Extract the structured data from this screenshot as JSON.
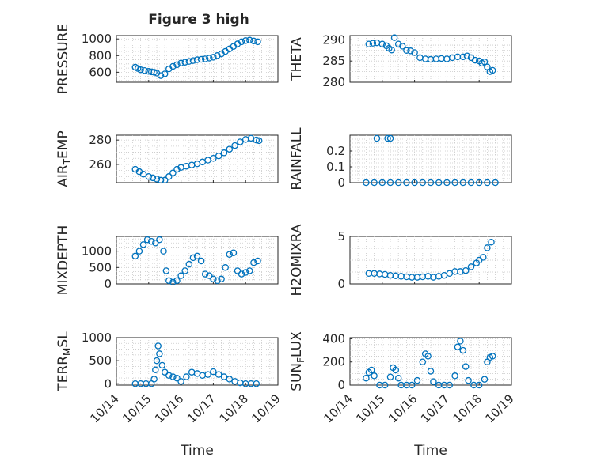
{
  "figure": {
    "title": "Figure 3 high",
    "accent_color": "#0072BD",
    "marker": "open-circle"
  },
  "chart_data": [
    {
      "type": "scatter",
      "name": "pressure",
      "ylabel": "PRESSURE",
      "xlim": [
        "10/14",
        "10/19"
      ],
      "ylim": [
        480,
        1040
      ],
      "yticks": [
        600,
        800,
        1000
      ],
      "grid": true,
      "x": [
        "10/14 14:00",
        "10/14 16:00",
        "10/14 18:00",
        "10/14 21:00",
        "10/15 00:00",
        "10/15 02:00",
        "10/15 04:00",
        "10/15 06:00",
        "10/15 09:00",
        "10/15 12:00",
        "10/15 15:00",
        "10/15 18:00",
        "10/15 21:00",
        "10/16 00:00",
        "10/16 03:00",
        "10/16 06:00",
        "10/16 09:00",
        "10/16 12:00",
        "10/16 15:00",
        "10/16 18:00",
        "10/16 21:00",
        "10/17 00:00",
        "10/17 03:00",
        "10/17 06:00",
        "10/17 09:00",
        "10/17 12:00",
        "10/17 15:00",
        "10/17 18:00",
        "10/17 21:00",
        "10/18 00:00",
        "10/18 03:00",
        "10/18 06:00",
        "10/18 09:00"
      ],
      "y": [
        660,
        645,
        630,
        620,
        610,
        605,
        600,
        590,
        560,
        580,
        640,
        670,
        690,
        710,
        720,
        730,
        740,
        750,
        755,
        760,
        770,
        780,
        800,
        820,
        850,
        880,
        910,
        940,
        965,
        980,
        985,
        975,
        965
      ]
    },
    {
      "type": "scatter",
      "name": "theta",
      "ylabel": "THETA",
      "xlim": [
        "10/14",
        "10/19"
      ],
      "ylim": [
        280,
        291
      ],
      "yticks": [
        280,
        285,
        290
      ],
      "grid": true,
      "x": [
        "10/14 14:00",
        "10/14 17:00",
        "10/14 20:00",
        "10/15 00:00",
        "10/15 03:00",
        "10/15 05:00",
        "10/15 07:00",
        "10/15 09:00",
        "10/15 12:00",
        "10/15 15:00",
        "10/15 18:00",
        "10/15 21:00",
        "10/16 00:00",
        "10/16 04:00",
        "10/16 08:00",
        "10/16 12:00",
        "10/16 16:00",
        "10/16 20:00",
        "10/17 00:00",
        "10/17 04:00",
        "10/17 08:00",
        "10/17 12:00",
        "10/17 15:00",
        "10/17 18:00",
        "10/17 21:00",
        "10/18 00:00",
        "10/18 02:00",
        "10/18 04:00",
        "10/18 06:00",
        "10/18 08:00",
        "10/18 10:00"
      ],
      "y": [
        289,
        289.2,
        289.3,
        289,
        288.6,
        288,
        287.6,
        290.5,
        289,
        288.5,
        287.5,
        287.4,
        287,
        285.8,
        285.5,
        285.4,
        285.5,
        285.6,
        285.5,
        285.8,
        286,
        286,
        286.2,
        285.8,
        285.2,
        285,
        284.5,
        284.8,
        283.6,
        282.5,
        282.8
      ]
    },
    {
      "type": "scatter",
      "name": "air_temp",
      "ylabel": "AIR_TEMP",
      "xlim": [
        "10/14",
        "10/19"
      ],
      "ylim": [
        245,
        284
      ],
      "yticks": [
        260,
        280
      ],
      "grid": true,
      "x": [
        "10/14 14:00",
        "10/14 17:00",
        "10/14 20:00",
        "10/15 00:00",
        "10/15 03:00",
        "10/15 06:00",
        "10/15 09:00",
        "10/15 12:00",
        "10/15 15:00",
        "10/15 18:00",
        "10/15 21:00",
        "10/16 00:00",
        "10/16 04:00",
        "10/16 08:00",
        "10/16 12:00",
        "10/16 16:00",
        "10/16 20:00",
        "10/17 00:00",
        "10/17 04:00",
        "10/17 08:00",
        "10/17 12:00",
        "10/17 16:00",
        "10/17 20:00",
        "10/18 00:00",
        "10/18 04:00",
        "10/18 08:00",
        "10/18 10:00"
      ],
      "y": [
        256,
        254,
        252,
        250,
        249,
        248,
        247,
        247,
        250,
        253,
        256,
        257.5,
        258.5,
        259.5,
        260.5,
        262,
        263.5,
        265,
        267,
        269.5,
        272.5,
        275.5,
        278.5,
        280.5,
        281.5,
        280,
        279.5
      ]
    },
    {
      "type": "scatter",
      "name": "rainfall",
      "ylabel": "RAINFALL",
      "xlim": [
        "10/14",
        "10/19"
      ],
      "ylim": [
        0,
        0.3
      ],
      "yticks": [
        0,
        0.1,
        0.2
      ],
      "grid": true,
      "x": [
        "10/14 12:00",
        "10/14 18:00",
        "10/15 00:00",
        "10/15 06:00",
        "10/15 12:00",
        "10/15 18:00",
        "10/16 00:00",
        "10/16 06:00",
        "10/16 12:00",
        "10/16 18:00",
        "10/17 00:00",
        "10/17 06:00",
        "10/17 12:00",
        "10/17 18:00",
        "10/18 00:00",
        "10/18 06:00",
        "10/18 12:00",
        "10/14 20:00",
        "10/15 04:00",
        "10/15 06:00"
      ],
      "y": [
        0,
        0,
        0,
        0,
        0,
        0,
        0,
        0,
        0,
        0,
        0,
        0,
        0,
        0,
        0,
        0,
        0,
        0.28,
        0.28,
        0.28
      ]
    },
    {
      "type": "scatter",
      "name": "mixdepth",
      "ylabel": "MIXDEPTH",
      "xlim": [
        "10/14",
        "10/19"
      ],
      "ylim": [
        0,
        1450
      ],
      "yticks": [
        0,
        500,
        1000
      ],
      "grid": true,
      "x": [
        "10/14 14:00",
        "10/14 17:00",
        "10/14 20:00",
        "10/14 23:00",
        "10/15 02:00",
        "10/15 05:00",
        "10/15 08:00",
        "10/15 11:00",
        "10/15 13:00",
        "10/15 15:00",
        "10/15 18:00",
        "10/15 21:00",
        "10/16 00:00",
        "10/16 03:00",
        "10/16 06:00",
        "10/16 09:00",
        "10/16 12:00",
        "10/16 15:00",
        "10/16 18:00",
        "10/16 21:00",
        "10/17 00:00",
        "10/17 03:00",
        "10/17 06:00",
        "10/17 09:00",
        "10/17 12:00",
        "10/17 15:00",
        "10/17 18:00",
        "10/17 21:00",
        "10/18 00:00",
        "10/18 03:00",
        "10/18 06:00",
        "10/18 09:00"
      ],
      "y": [
        850,
        1000,
        1200,
        1350,
        1300,
        1250,
        1350,
        1000,
        400,
        100,
        50,
        100,
        250,
        400,
        600,
        800,
        850,
        700,
        300,
        250,
        150,
        100,
        150,
        500,
        900,
        950,
        400,
        300,
        350,
        400,
        650,
        700
      ]
    },
    {
      "type": "scatter",
      "name": "h2omixra",
      "ylabel": "H2OMIXRA",
      "xlim": [
        "10/14",
        "10/19"
      ],
      "ylim": [
        0,
        5
      ],
      "yticks": [
        0,
        5
      ],
      "grid": true,
      "x": [
        "10/14 14:00",
        "10/14 18:00",
        "10/14 22:00",
        "10/15 02:00",
        "10/15 06:00",
        "10/15 10:00",
        "10/15 14:00",
        "10/15 18:00",
        "10/15 22:00",
        "10/16 02:00",
        "10/16 06:00",
        "10/16 10:00",
        "10/16 14:00",
        "10/16 18:00",
        "10/16 22:00",
        "10/17 02:00",
        "10/17 06:00",
        "10/17 10:00",
        "10/17 14:00",
        "10/17 18:00",
        "10/17 22:00",
        "10/18 00:00",
        "10/18 03:00",
        "10/18 06:00",
        "10/18 09:00"
      ],
      "y": [
        1.1,
        1.1,
        1.05,
        1,
        0.9,
        0.85,
        0.8,
        0.75,
        0.7,
        0.7,
        0.75,
        0.8,
        0.7,
        0.8,
        0.9,
        1.1,
        1.3,
        1.3,
        1.4,
        1.8,
        2.2,
        2.5,
        2.8,
        3.8,
        4.4
      ]
    },
    {
      "type": "scatter",
      "name": "terr_msl",
      "ylabel": "TERR_MSL",
      "xlim": [
        "10/14",
        "10/19"
      ],
      "ylim": [
        -30,
        1000
      ],
      "yticks": [
        0,
        500,
        1000
      ],
      "grid": true,
      "x": [
        "10/14 14:00",
        "10/14 18:00",
        "10/14 22:00",
        "10/15 02:00",
        "10/15 04:00",
        "10/15 05:00",
        "10/15 06:00",
        "10/15 07:00",
        "10/15 08:00",
        "10/15 10:00",
        "10/15 12:00",
        "10/15 15:00",
        "10/15 18:00",
        "10/15 21:00",
        "10/16 00:00",
        "10/16 04:00",
        "10/16 08:00",
        "10/16 12:00",
        "10/16 16:00",
        "10/16 20:00",
        "10/17 00:00",
        "10/17 04:00",
        "10/17 08:00",
        "10/17 12:00",
        "10/17 16:00",
        "10/17 20:00",
        "10/18 00:00",
        "10/18 04:00",
        "10/18 08:00"
      ],
      "y": [
        0,
        0,
        0,
        0,
        100,
        300,
        500,
        820,
        650,
        400,
        250,
        180,
        150,
        120,
        50,
        150,
        250,
        220,
        180,
        200,
        260,
        200,
        150,
        100,
        50,
        20,
        0,
        0,
        0
      ]
    },
    {
      "type": "scatter",
      "name": "sun_flux",
      "ylabel": "SUN_FLUX",
      "xlim": [
        "10/14",
        "10/19"
      ],
      "ylim": [
        0,
        410
      ],
      "yticks": [
        0,
        200,
        400
      ],
      "grid": true,
      "x": [
        "10/14 12:00",
        "10/14 14:00",
        "10/14 16:00",
        "10/14 18:00",
        "10/14 22:00",
        "10/15 02:00",
        "10/15 06:00",
        "10/15 08:00",
        "10/15 10:00",
        "10/15 12:00",
        "10/15 14:00",
        "10/15 18:00",
        "10/15 22:00",
        "10/16 02:00",
        "10/16 06:00",
        "10/16 08:00",
        "10/16 10:00",
        "10/16 12:00",
        "10/16 14:00",
        "10/16 18:00",
        "10/16 22:00",
        "10/17 02:00",
        "10/17 06:00",
        "10/17 08:00",
        "10/17 10:00",
        "10/17 12:00",
        "10/17 14:00",
        "10/17 16:00",
        "10/17 20:00",
        "10/18 00:00",
        "10/18 04:00",
        "10/18 06:00",
        "10/18 08:00",
        "10/18 10:00"
      ],
      "y": [
        60,
        110,
        130,
        80,
        0,
        0,
        70,
        150,
        130,
        60,
        0,
        0,
        0,
        40,
        200,
        270,
        250,
        120,
        30,
        0,
        0,
        0,
        80,
        330,
        380,
        300,
        160,
        40,
        0,
        0,
        50,
        200,
        240,
        250
      ]
    }
  ],
  "x_axis": {
    "ticks": [
      "10/14",
      "10/15",
      "10/16",
      "10/17",
      "10/18",
      "10/19"
    ],
    "label": "Time"
  }
}
